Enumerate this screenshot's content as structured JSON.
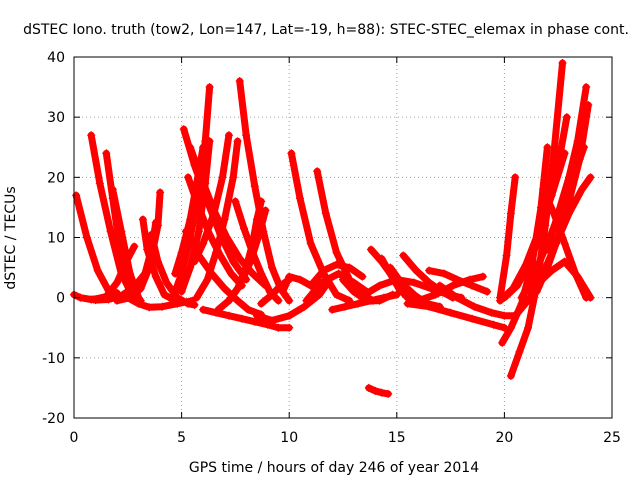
{
  "chart_data": {
    "type": "scatter",
    "title": "dSTEC Iono. truth (tow2, Lon=147, Lat=-19, h=88): STEC-STEC_elemax in phase cont.",
    "xlabel": "GPS time / hours of day 246 of year 2014",
    "ylabel": "dSTEC  / TECUs",
    "xlim": [
      0,
      25
    ],
    "ylim": [
      -20,
      40
    ],
    "xticks": [
      0,
      5,
      10,
      15,
      20,
      25
    ],
    "yticks": [
      -20,
      -10,
      0,
      10,
      20,
      30,
      40
    ],
    "xtick_labels": [
      "0",
      "5",
      "10",
      "15",
      "20",
      "25"
    ],
    "ytick_labels": [
      "-20",
      "-10",
      "0",
      "10",
      "20",
      "30",
      "40"
    ],
    "grid": true,
    "marker": "plus",
    "color": "#ff0000",
    "series": [
      {
        "x": [
          0.0,
          0.3,
          0.8,
          1.4,
          2.0
        ],
        "y": [
          0.5,
          0.0,
          -0.3,
          0.0,
          0.8
        ]
      },
      {
        "x": [
          0.1,
          0.6,
          1.1,
          1.6,
          2.1,
          2.4
        ],
        "y": [
          17.0,
          10.0,
          4.5,
          1.2,
          -0.3,
          0.0
        ]
      },
      {
        "x": [
          0.8,
          1.2,
          1.7,
          2.2,
          2.7,
          3.1
        ],
        "y": [
          27.0,
          19.0,
          11.0,
          4.0,
          0.5,
          -0.5
        ]
      },
      {
        "x": [
          1.5,
          1.8,
          2.1,
          2.4,
          2.7
        ],
        "y": [
          24.0,
          16.5,
          9.0,
          3.0,
          0.0
        ]
      },
      {
        "x": [
          1.8,
          2.2,
          2.6,
          3.0
        ],
        "y": [
          18.0,
          11.0,
          4.0,
          0.0
        ]
      },
      {
        "x": [
          0.9,
          1.5,
          2.0,
          2.5,
          2.8
        ],
        "y": [
          -0.3,
          0.2,
          2.5,
          6.5,
          8.5
        ]
      },
      {
        "x": [
          1.0,
          1.6,
          2.2,
          2.8,
          3.3,
          3.6,
          3.8
        ],
        "y": [
          -0.4,
          -0.3,
          0.3,
          1.8,
          4.0,
          8.0,
          12.5
        ]
      },
      {
        "x": [
          2.0,
          2.6,
          3.1,
          3.5,
          3.9,
          4.0
        ],
        "y": [
          -0.5,
          0.0,
          1.5,
          5.0,
          12.0,
          17.5
        ]
      },
      {
        "x": [
          2.5,
          3.0,
          3.5,
          4.1,
          4.8,
          5.5
        ],
        "y": [
          0.0,
          -1.0,
          -1.6,
          -1.5,
          -1.0,
          -0.5
        ]
      },
      {
        "x": [
          3.2,
          3.4,
          3.8,
          4.2,
          4.7
        ],
        "y": [
          13.0,
          8.0,
          3.5,
          0.5,
          -0.5
        ]
      },
      {
        "x": [
          3.6,
          3.9,
          4.3,
          4.8,
          5.3,
          5.6
        ],
        "y": [
          10.5,
          6.0,
          2.5,
          0.0,
          -1.0,
          -1.2
        ]
      },
      {
        "x": [
          5.1,
          5.6,
          6.2,
          6.8,
          7.4,
          8.0
        ],
        "y": [
          28.0,
          22.0,
          16.0,
          10.5,
          6.0,
          3.0
        ]
      },
      {
        "x": [
          5.4,
          5.9,
          6.5,
          7.1,
          7.7,
          8.3,
          8.9
        ],
        "y": [
          25.0,
          20.0,
          14.5,
          10.0,
          6.5,
          4.0,
          2.0
        ]
      },
      {
        "x": [
          5.3,
          5.8,
          6.3,
          6.8,
          7.3,
          7.8
        ],
        "y": [
          20.0,
          15.0,
          10.5,
          7.0,
          4.0,
          2.0
        ]
      },
      {
        "x": [
          5.2,
          5.8,
          6.4,
          7.0,
          7.6,
          8.1,
          8.7
        ],
        "y": [
          11.0,
          7.0,
          4.0,
          1.5,
          -0.5,
          -2.0,
          -2.8
        ]
      },
      {
        "x": [
          4.6,
          5.0,
          5.4,
          5.8,
          6.1,
          6.3
        ],
        "y": [
          0.0,
          4.0,
          10.0,
          17.5,
          26.0,
          35.0
        ]
      },
      {
        "x": [
          5.0,
          5.4,
          5.8,
          6.1,
          6.3
        ],
        "y": [
          1.0,
          5.0,
          11.0,
          19.0,
          26.0
        ]
      },
      {
        "x": [
          4.7,
          5.0,
          5.4,
          5.7,
          6.0
        ],
        "y": [
          4.0,
          7.5,
          13.0,
          19.0,
          25.0
        ]
      },
      {
        "x": [
          5.6,
          6.0,
          6.5,
          6.9,
          7.2
        ],
        "y": [
          6.0,
          9.0,
          14.0,
          20.0,
          27.0
        ]
      },
      {
        "x": [
          5.7,
          6.2,
          6.6,
          7.0,
          7.4,
          7.6
        ],
        "y": [
          0.0,
          3.0,
          7.5,
          13.0,
          20.0,
          26.0
        ]
      },
      {
        "x": [
          6.0,
          6.6,
          7.2,
          7.8,
          8.4,
          9.0,
          9.5,
          10.0
        ],
        "y": [
          -2.0,
          -2.5,
          -3.0,
          -3.5,
          -4.0,
          -4.5,
          -5.0,
          -5.0
        ]
      },
      {
        "x": [
          7.7,
          8.0,
          8.4,
          8.8,
          9.2,
          9.6,
          10.0
        ],
        "y": [
          36.0,
          27.0,
          18.5,
          11.0,
          5.0,
          1.5,
          -0.5
        ]
      },
      {
        "x": [
          7.5,
          7.9,
          8.3,
          8.7,
          9.1,
          9.5
        ],
        "y": [
          16.0,
          11.5,
          7.5,
          4.0,
          1.0,
          -0.5
        ]
      },
      {
        "x": [
          7.2,
          7.6,
          8.0,
          8.3,
          8.5,
          8.7
        ],
        "y": [
          -0.5,
          1.5,
          5.0,
          9.0,
          13.0,
          16.0
        ]
      },
      {
        "x": [
          6.7,
          7.2,
          7.7,
          8.2,
          8.6,
          8.9
        ],
        "y": [
          -2.0,
          -0.5,
          2.0,
          6.0,
          10.5,
          14.5
        ]
      },
      {
        "x": [
          8.7,
          9.2,
          9.6,
          10.0
        ],
        "y": [
          -1.0,
          0.5,
          2.0,
          3.0
        ]
      },
      {
        "x": [
          9.7,
          10.0,
          10.5,
          11.0,
          11.5
        ],
        "y": [
          1.0,
          3.5,
          3.0,
          2.0,
          1.0
        ]
      },
      {
        "x": [
          8.5,
          9.2,
          10.0,
          10.7,
          11.4,
          11.7
        ],
        "y": [
          -3.0,
          -3.8,
          -3.0,
          -1.5,
          0.5,
          2.0
        ]
      },
      {
        "x": [
          10.1,
          10.5,
          11.0,
          11.6,
          12.2,
          12.8
        ],
        "y": [
          24.0,
          16.5,
          9.0,
          4.0,
          0.5,
          -0.5
        ]
      },
      {
        "x": [
          11.3,
          11.7,
          12.2,
          12.8,
          13.4,
          13.9
        ],
        "y": [
          21.0,
          14.0,
          7.5,
          3.0,
          0.5,
          -0.5
        ]
      },
      {
        "x": [
          11.0,
          11.6,
          12.2,
          12.8,
          13.4
        ],
        "y": [
          2.0,
          4.5,
          5.5,
          5.0,
          3.5
        ]
      },
      {
        "x": [
          10.8,
          11.5,
          12.3,
          13.0,
          13.6
        ],
        "y": [
          -0.5,
          2.5,
          4.0,
          2.5,
          1.0
        ]
      },
      {
        "x": [
          12.0,
          12.6,
          13.2,
          13.8,
          14.4,
          15.0
        ],
        "y": [
          -2.0,
          -1.5,
          -1.0,
          -0.5,
          0.0,
          0.5
        ]
      },
      {
        "x": [
          12.5,
          13.0,
          13.6,
          14.2,
          14.8
        ],
        "y": [
          3.0,
          1.0,
          -0.5,
          -0.5,
          0.5
        ]
      },
      {
        "x": [
          13.8,
          14.3,
          14.8,
          15.3,
          15.8
        ],
        "y": [
          8.0,
          6.0,
          3.5,
          1.0,
          -0.5
        ]
      },
      {
        "x": [
          14.3,
          14.7,
          15.1,
          15.5,
          16.0
        ],
        "y": [
          6.5,
          4.0,
          1.5,
          0.0,
          -1.0
        ]
      },
      {
        "x": [
          14.7,
          15.2,
          15.8,
          16.4,
          17.0
        ],
        "y": [
          5.0,
          2.5,
          0.5,
          -1.0,
          -1.5
        ]
      },
      {
        "x": [
          15.3,
          15.9,
          16.5,
          17.1,
          17.6
        ],
        "y": [
          7.0,
          4.5,
          2.5,
          1.0,
          0.0
        ]
      },
      {
        "x": [
          13.5,
          14.2,
          15.0,
          15.8,
          16.6,
          17.4,
          18.0
        ],
        "y": [
          0.5,
          2.0,
          3.0,
          2.5,
          1.5,
          0.5,
          0.0
        ]
      },
      {
        "x": [
          16.5,
          17.2,
          17.8,
          18.5,
          19.2
        ],
        "y": [
          4.5,
          4.0,
          3.0,
          2.0,
          1.0
        ]
      },
      {
        "x": [
          16.0,
          16.8,
          17.6,
          18.4,
          19.0
        ],
        "y": [
          -0.5,
          0.5,
          2.0,
          3.0,
          3.5
        ]
      },
      {
        "x": [
          15.5,
          16.5,
          17.5,
          18.5,
          19.5,
          20.0
        ],
        "y": [
          -1.0,
          -1.5,
          -2.5,
          -3.5,
          -4.5,
          -5.0
        ]
      },
      {
        "x": [
          17.0,
          17.8,
          18.6,
          19.4,
          20.0,
          20.5
        ],
        "y": [
          2.0,
          0.0,
          -1.5,
          -2.5,
          -3.0,
          -3.0
        ]
      },
      {
        "x": [
          13.7,
          14.0,
          14.3,
          14.6
        ],
        "y": [
          -15.0,
          -15.5,
          -15.8,
          -16.0
        ]
      },
      {
        "x": [
          19.9,
          20.3,
          20.8,
          21.3,
          21.7,
          22.0
        ],
        "y": [
          -7.5,
          -5.0,
          -1.0,
          6.0,
          15.0,
          25.0
        ]
      },
      {
        "x": [
          20.3,
          20.7,
          21.1,
          21.5,
          21.9,
          22.3,
          22.7
        ],
        "y": [
          -13.0,
          -9.0,
          -5.0,
          2.0,
          12.0,
          24.0,
          39.0
        ]
      },
      {
        "x": [
          19.8,
          20.1,
          20.3,
          20.5
        ],
        "y": [
          0.0,
          7.0,
          14.0,
          20.0
        ]
      },
      {
        "x": [
          20.0,
          20.6,
          21.2,
          21.8,
          22.4,
          22.9
        ],
        "y": [
          0.0,
          2.0,
          6.0,
          12.0,
          20.0,
          30.0
        ]
      },
      {
        "x": [
          19.8,
          20.4,
          21.0,
          21.6,
          22.2,
          22.8
        ],
        "y": [
          -0.5,
          1.5,
          5.5,
          11.0,
          17.0,
          24.0
        ]
      },
      {
        "x": [
          20.8,
          21.4,
          22.0,
          22.6,
          23.2,
          23.7
        ],
        "y": [
          0.0,
          4.0,
          9.0,
          14.5,
          20.0,
          25.0
        ]
      },
      {
        "x": [
          21.5,
          22.0,
          22.5,
          23.0,
          23.5,
          23.9
        ],
        "y": [
          1.0,
          5.0,
          10.0,
          16.0,
          23.0,
          32.0
        ]
      },
      {
        "x": [
          20.5,
          21.2,
          21.8,
          22.4,
          23.0,
          23.6,
          24.0
        ],
        "y": [
          -3.0,
          0.0,
          4.0,
          9.0,
          14.0,
          18.0,
          20.0
        ]
      },
      {
        "x": [
          22.0,
          22.5,
          23.0,
          23.4,
          23.8
        ],
        "y": [
          8.0,
          14.0,
          20.0,
          26.0,
          35.0
        ]
      },
      {
        "x": [
          21.0,
          21.6,
          22.2,
          22.8,
          23.4,
          24.0
        ],
        "y": [
          1.0,
          2.5,
          4.5,
          6.0,
          3.5,
          0.0
        ]
      },
      {
        "x": [
          21.8,
          22.3,
          22.8,
          23.3,
          23.8
        ],
        "y": [
          18.0,
          14.0,
          9.0,
          4.0,
          0.0
        ]
      }
    ]
  }
}
